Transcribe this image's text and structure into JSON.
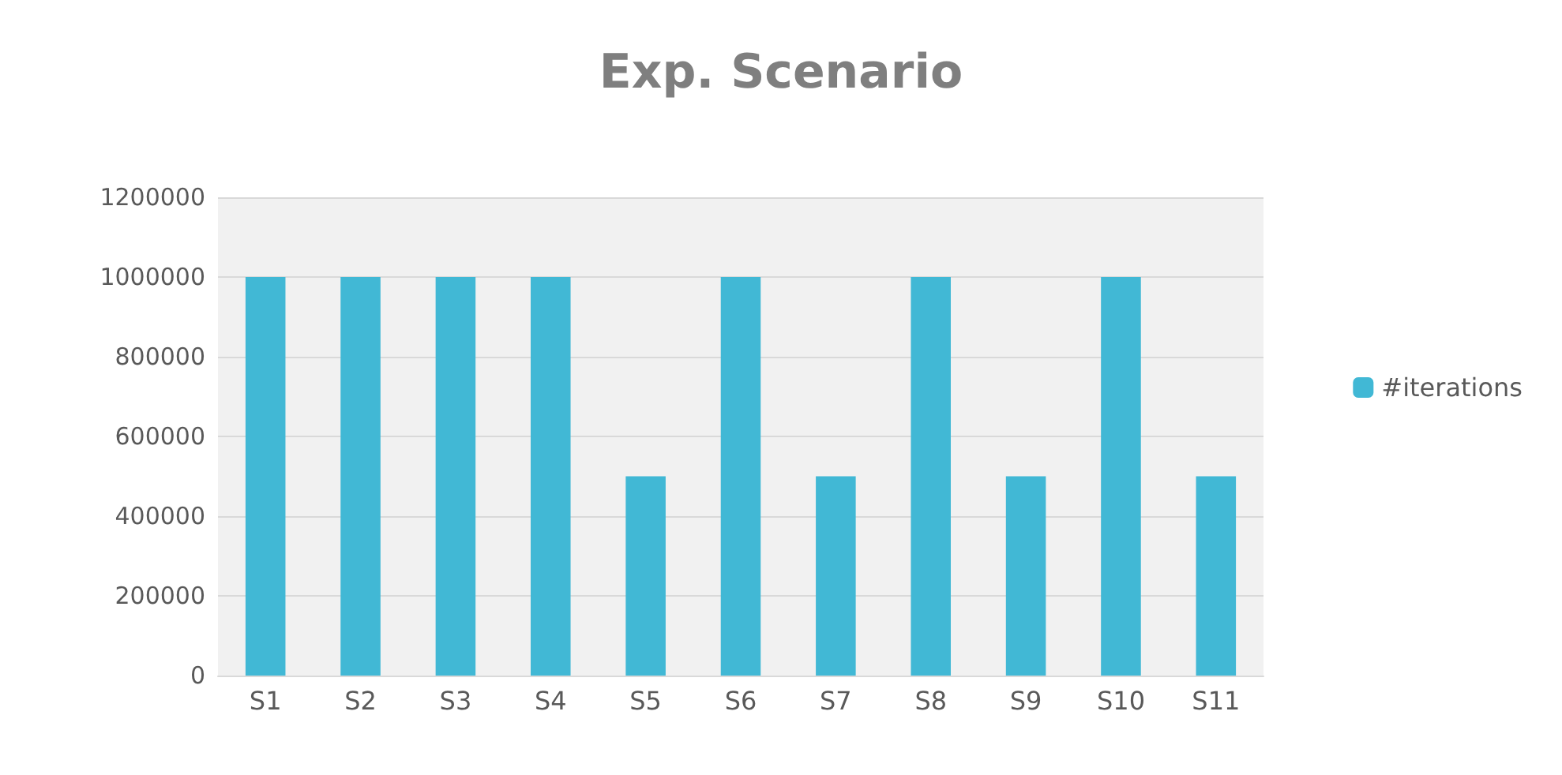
{
  "chart_data": {
    "type": "bar",
    "title": "Exp. Scenario",
    "categories": [
      "S1",
      "S2",
      "S3",
      "S4",
      "S5",
      "S6",
      "S7",
      "S8",
      "S9",
      "S10",
      "S11"
    ],
    "series": [
      {
        "name": "#iterations",
        "color": "#41b8d5",
        "values": [
          1000000,
          1000000,
          1000000,
          1000000,
          500000,
          1000000,
          500000,
          1000000,
          500000,
          1000000,
          500000
        ]
      }
    ],
    "ylim": [
      0,
      1200000
    ],
    "yticks": [
      0,
      200000,
      400000,
      600000,
      800000,
      1000000,
      1200000
    ],
    "grid": "y",
    "legend": "right"
  }
}
